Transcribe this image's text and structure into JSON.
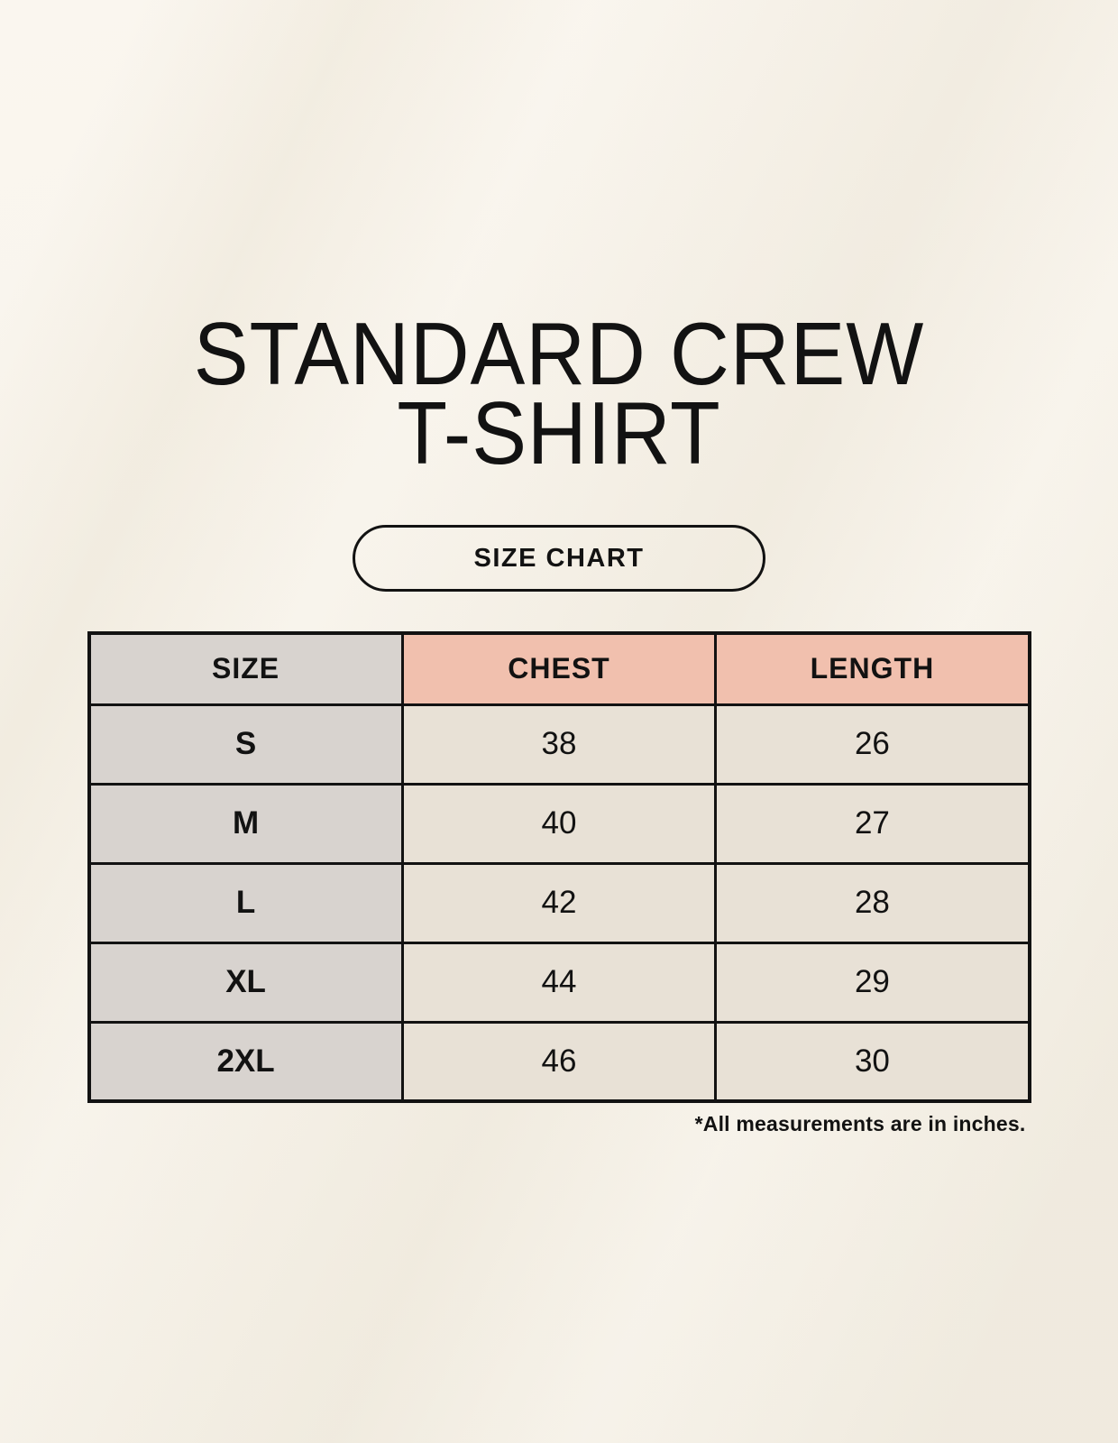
{
  "page": {
    "title_line1": "STANDARD CREW",
    "title_line2": "T-SHIRT",
    "size_chart_button": "SIZE CHART",
    "footnote": "*All measurements are in inches."
  },
  "chart_data": {
    "type": "table",
    "title": "STANDARD CREW T-SHIRT",
    "subtitle": "SIZE CHART",
    "columns": [
      "SIZE",
      "CHEST",
      "LENGTH"
    ],
    "rows": [
      [
        "S",
        38,
        26
      ],
      [
        "M",
        40,
        27
      ],
      [
        "L",
        42,
        28
      ],
      [
        "XL",
        44,
        29
      ],
      [
        "2XL",
        46,
        30
      ]
    ],
    "units": "inches",
    "footnote": "*All measurements are in inches."
  },
  "colors": {
    "background_cream": "#f8f4ec",
    "accent_salmon": "#f1c0ae",
    "header_gray": "#d8d3cf",
    "cell_beige": "#e8e1d6",
    "border_black": "#121212",
    "text_black": "#121212"
  }
}
